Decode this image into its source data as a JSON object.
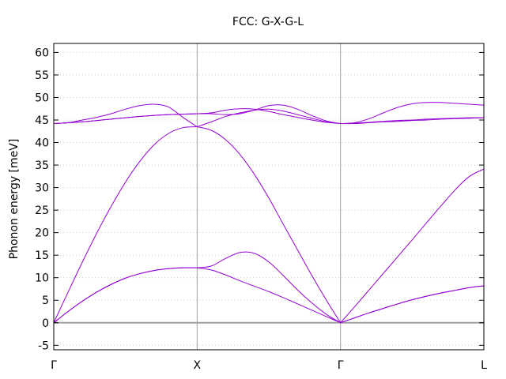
{
  "chart_data": {
    "type": "line",
    "title": "FCC: G-X-G-L",
    "xlabel": "",
    "ylabel": "Phonon energy [meV]",
    "ylim": [
      -6,
      62
    ],
    "y_ticks": [
      -5,
      0,
      5,
      10,
      15,
      20,
      25,
      30,
      35,
      40,
      45,
      50,
      55,
      60
    ],
    "x_range": [
      0,
      3
    ],
    "x_ticks": [
      {
        "x": 0,
        "label": "Γ"
      },
      {
        "x": 1,
        "label": "X"
      },
      {
        "x": 2,
        "label": "Γ"
      },
      {
        "x": 3,
        "label": "L"
      }
    ],
    "grid": true,
    "zero_line": true,
    "line_color": "#9400d3",
    "grid_color": "#a0a0a0",
    "series": [
      {
        "x": [
          0,
          0.1,
          0.2,
          0.3,
          0.4,
          0.5,
          0.6,
          0.7,
          0.8,
          0.9,
          1.0
        ],
        "values": [
          0,
          2.5,
          4.8,
          6.8,
          8.5,
          9.9,
          10.9,
          11.6,
          12.0,
          12.2,
          12.2
        ]
      },
      {
        "x": [
          0,
          0.1,
          0.2,
          0.3,
          0.4,
          0.5,
          0.6,
          0.7,
          0.8,
          0.9,
          1.0
        ],
        "values": [
          0,
          2.5,
          4.8,
          6.8,
          8.5,
          9.9,
          10.9,
          11.6,
          12.0,
          12.2,
          12.2
        ]
      },
      {
        "x": [
          0,
          0.1,
          0.2,
          0.3,
          0.4,
          0.5,
          0.6,
          0.7,
          0.8,
          0.9,
          1.0
        ],
        "values": [
          0,
          6.8,
          13.5,
          19.9,
          25.8,
          31.2,
          35.8,
          39.5,
          42.0,
          43.3,
          43.5
        ]
      },
      {
        "x": [
          0,
          0.1,
          0.2,
          0.3,
          0.4,
          0.5,
          0.6,
          0.7,
          0.8,
          0.9,
          1.0
        ],
        "values": [
          44.2,
          44.4,
          45.0,
          45.6,
          46.4,
          47.4,
          48.2,
          48.5,
          47.9,
          45.6,
          43.5
        ]
      },
      {
        "x": [
          0,
          0.2,
          0.4,
          0.6,
          0.8,
          1.0
        ],
        "values": [
          44.2,
          44.6,
          45.2,
          45.8,
          46.2,
          46.4
        ]
      },
      {
        "x": [
          0,
          0.2,
          0.4,
          0.6,
          0.8,
          1.0
        ],
        "values": [
          44.2,
          44.6,
          45.2,
          45.8,
          46.2,
          46.4
        ]
      },
      {
        "x": [
          1.0,
          1.1,
          1.2,
          1.3,
          1.4,
          1.5,
          1.6,
          1.7,
          1.8,
          1.9,
          2.0
        ],
        "values": [
          12.2,
          12.6,
          14.3,
          15.6,
          15.4,
          13.5,
          10.5,
          7.3,
          4.4,
          1.9,
          0
        ]
      },
      {
        "x": [
          1.0,
          1.1,
          1.2,
          1.3,
          1.4,
          1.5,
          1.6,
          1.7,
          1.8,
          1.9,
          2.0
        ],
        "values": [
          12.2,
          11.7,
          10.6,
          9.3,
          8.1,
          6.9,
          5.6,
          4.2,
          2.8,
          1.4,
          0
        ]
      },
      {
        "x": [
          1.0,
          1.1,
          1.2,
          1.3,
          1.4,
          1.5,
          1.6,
          1.7,
          1.8,
          1.9,
          2.0
        ],
        "values": [
          43.5,
          42.7,
          40.6,
          37.3,
          32.9,
          27.7,
          21.9,
          16.2,
          10.5,
          5.1,
          0
        ]
      },
      {
        "x": [
          1.0,
          1.1,
          1.2,
          1.3,
          1.4,
          1.5,
          1.6,
          1.7,
          1.8,
          1.9,
          2.0
        ],
        "values": [
          43.5,
          44.6,
          45.8,
          46.6,
          47.2,
          47.4,
          47.0,
          46.2,
          45.4,
          44.6,
          44.2
        ]
      },
      {
        "x": [
          1.0,
          1.1,
          1.2,
          1.3,
          1.4,
          1.5,
          1.6,
          1.7,
          1.8,
          1.9,
          2.0
        ],
        "values": [
          46.4,
          46.6,
          47.2,
          47.5,
          47.4,
          46.9,
          46.2,
          45.6,
          45.0,
          44.5,
          44.2
        ]
      },
      {
        "x": [
          1.0,
          1.1,
          1.2,
          1.3,
          1.4,
          1.5,
          1.6,
          1.7,
          1.8,
          1.9,
          2.0
        ],
        "values": [
          46.4,
          46.4,
          46.2,
          46.4,
          47.2,
          48.2,
          48.3,
          47.4,
          46.0,
          44.8,
          44.2
        ]
      },
      {
        "x": [
          2.0,
          2.1,
          2.2,
          2.3,
          2.4,
          2.5,
          2.6,
          2.7,
          2.8,
          2.9,
          3.0
        ],
        "values": [
          0,
          1.1,
          2.2,
          3.2,
          4.2,
          5.1,
          5.9,
          6.6,
          7.2,
          7.8,
          8.2
        ]
      },
      {
        "x": [
          2.0,
          2.1,
          2.2,
          2.3,
          2.4,
          2.5,
          2.6,
          2.7,
          2.8,
          2.9,
          3.0
        ],
        "values": [
          0,
          1.1,
          2.2,
          3.2,
          4.2,
          5.1,
          5.9,
          6.6,
          7.2,
          7.8,
          8.2
        ]
      },
      {
        "x": [
          2.0,
          2.1,
          2.2,
          2.3,
          2.4,
          2.5,
          2.6,
          2.7,
          2.8,
          2.9,
          3.0
        ],
        "values": [
          0,
          3.6,
          7.3,
          11.0,
          14.7,
          18.4,
          22.2,
          25.9,
          29.5,
          32.5,
          34.1
        ]
      },
      {
        "x": [
          2.0,
          2.1,
          2.2,
          2.3,
          2.4,
          2.5,
          2.6,
          2.7,
          2.8,
          2.9,
          3.0
        ],
        "values": [
          44.2,
          44.2,
          44.4,
          44.6,
          44.7,
          44.9,
          45.0,
          45.2,
          45.3,
          45.4,
          45.5
        ]
      },
      {
        "x": [
          2.0,
          2.1,
          2.2,
          2.3,
          2.4,
          2.5,
          2.6,
          2.7,
          2.8,
          2.9,
          3.0
        ],
        "values": [
          44.2,
          44.3,
          44.5,
          44.7,
          44.9,
          45.0,
          45.2,
          45.3,
          45.4,
          45.5,
          45.5
        ]
      },
      {
        "x": [
          2.0,
          2.1,
          2.2,
          2.3,
          2.4,
          2.5,
          2.6,
          2.7,
          2.8,
          2.9,
          3.0
        ],
        "values": [
          44.2,
          44.4,
          45.3,
          46.6,
          47.8,
          48.6,
          48.9,
          48.9,
          48.7,
          48.5,
          48.3
        ]
      }
    ]
  }
}
